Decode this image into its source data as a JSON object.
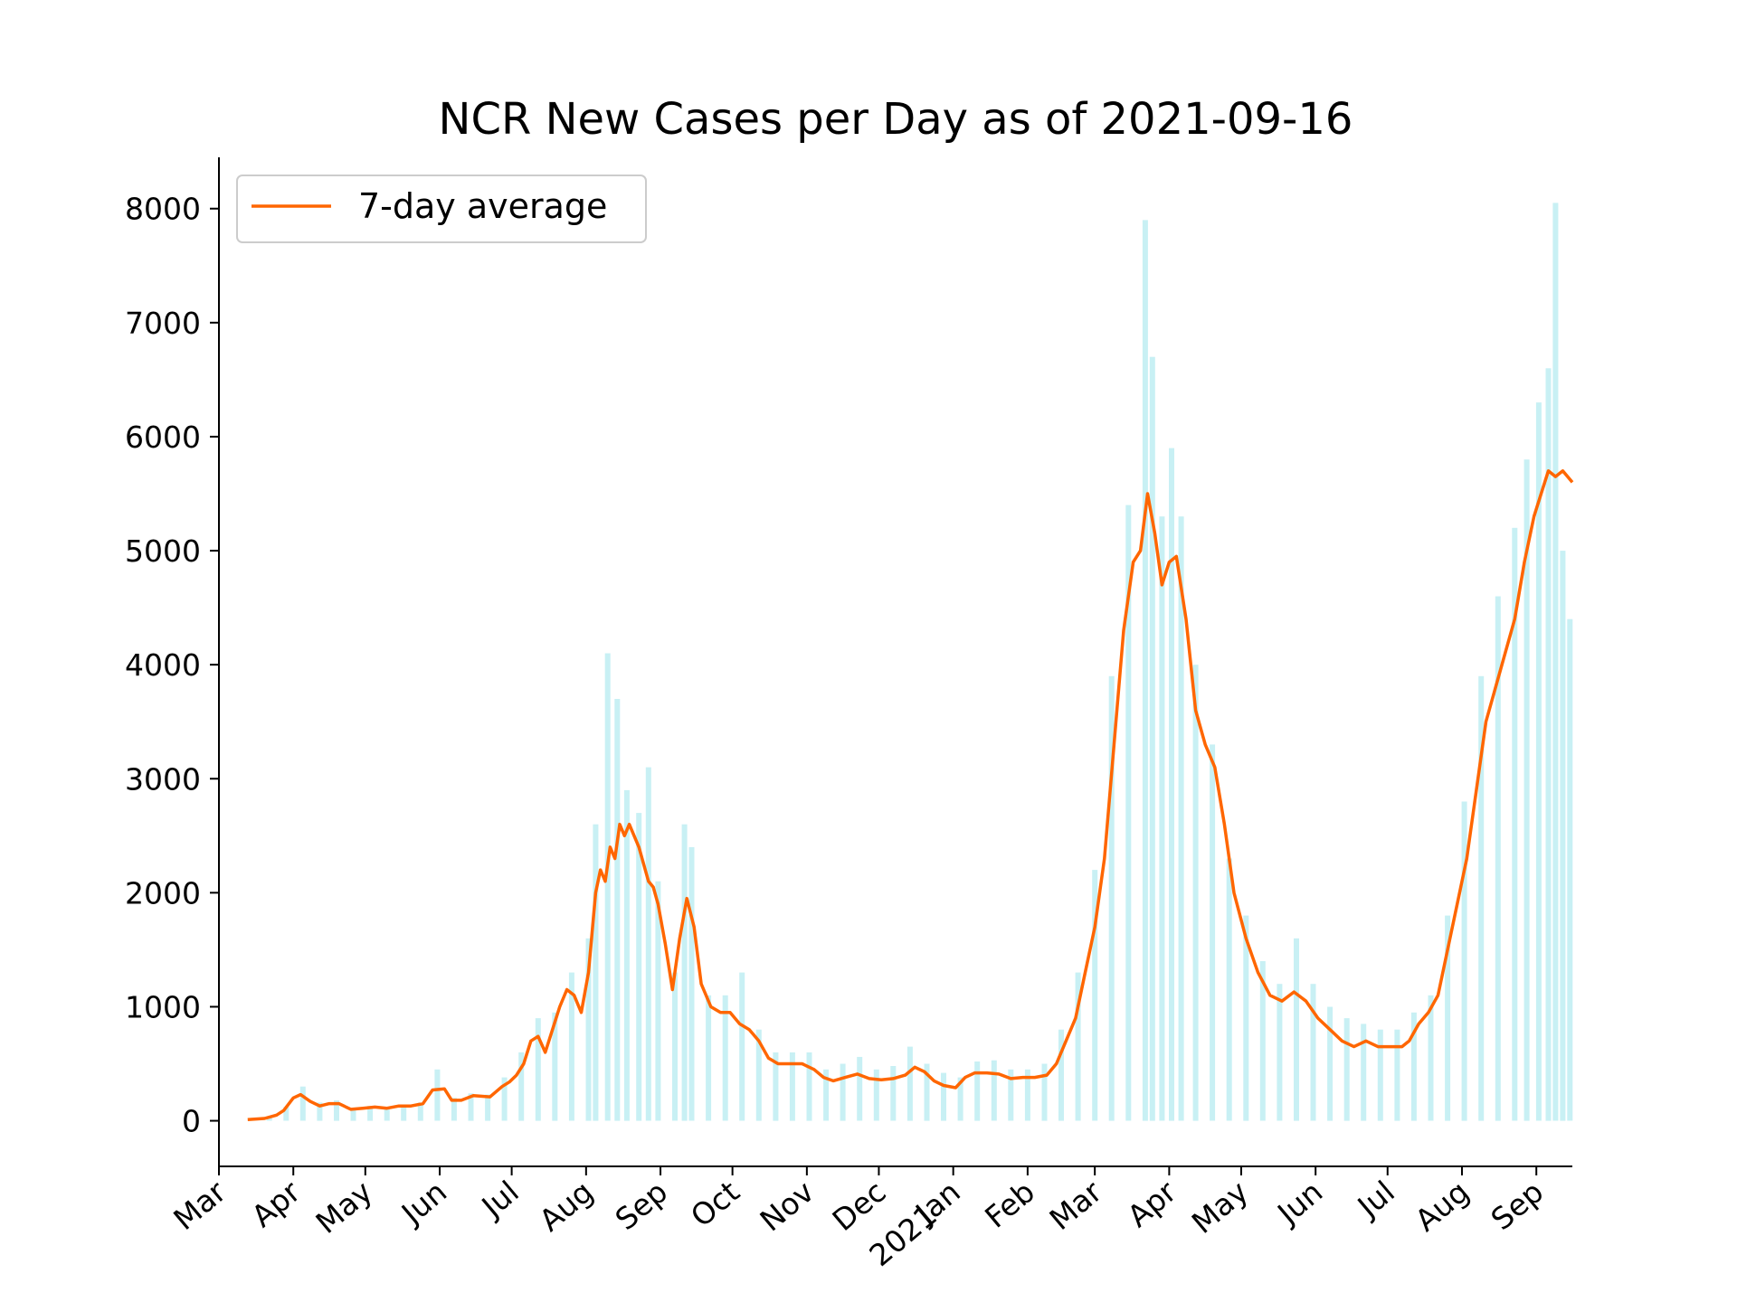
{
  "chart_data": {
    "type": "line",
    "title": "NCR New Cases per Day as of 2021-09-16",
    "xlabel": "",
    "ylabel": "",
    "xlim": [
      "2020-03-01",
      "2021-09-16"
    ],
    "ylim": [
      -400,
      8450
    ],
    "y_ticks": [
      0,
      1000,
      2000,
      3000,
      4000,
      5000,
      6000,
      7000,
      8000
    ],
    "x_ticks": [
      {
        "date": "2020-03-01",
        "label": "Mar"
      },
      {
        "date": "2020-04-01",
        "label": "Apr"
      },
      {
        "date": "2020-05-01",
        "label": "May"
      },
      {
        "date": "2020-06-01",
        "label": "Jun"
      },
      {
        "date": "2020-07-01",
        "label": "Jul"
      },
      {
        "date": "2020-08-01",
        "label": "Aug"
      },
      {
        "date": "2020-09-01",
        "label": "Sep"
      },
      {
        "date": "2020-10-01",
        "label": "Oct"
      },
      {
        "date": "2020-11-01",
        "label": "Nov"
      },
      {
        "date": "2020-12-01",
        "label": "Dec"
      },
      {
        "date": "2021-01-01",
        "label": "Jan\n2021"
      },
      {
        "date": "2021-02-01",
        "label": "Feb"
      },
      {
        "date": "2021-03-01",
        "label": "Mar"
      },
      {
        "date": "2021-04-01",
        "label": "Apr"
      },
      {
        "date": "2021-05-01",
        "label": "May"
      },
      {
        "date": "2021-06-01",
        "label": "Jun"
      },
      {
        "date": "2021-07-01",
        "label": "Jul"
      },
      {
        "date": "2021-08-01",
        "label": "Aug"
      },
      {
        "date": "2021-09-01",
        "label": "Sep"
      }
    ],
    "legend": {
      "placement": "upper-left",
      "entries": [
        "7-day average"
      ]
    },
    "grid": false,
    "series": [
      {
        "name": "7-day average",
        "color": "#ff6600",
        "points": [
          [
            "2020-03-13",
            10
          ],
          [
            "2020-03-20",
            20
          ],
          [
            "2020-03-25",
            50
          ],
          [
            "2020-03-28",
            90
          ],
          [
            "2020-04-01",
            200
          ],
          [
            "2020-04-04",
            230
          ],
          [
            "2020-04-08",
            170
          ],
          [
            "2020-04-12",
            130
          ],
          [
            "2020-04-16",
            150
          ],
          [
            "2020-04-20",
            150
          ],
          [
            "2020-04-25",
            100
          ],
          [
            "2020-04-30",
            110
          ],
          [
            "2020-05-05",
            120
          ],
          [
            "2020-05-10",
            110
          ],
          [
            "2020-05-15",
            130
          ],
          [
            "2020-05-20",
            130
          ],
          [
            "2020-05-25",
            150
          ],
          [
            "2020-05-29",
            270
          ],
          [
            "2020-06-03",
            280
          ],
          [
            "2020-06-06",
            180
          ],
          [
            "2020-06-10",
            180
          ],
          [
            "2020-06-15",
            220
          ],
          [
            "2020-06-22",
            210
          ],
          [
            "2020-06-27",
            300
          ],
          [
            "2020-06-30",
            340
          ],
          [
            "2020-07-03",
            400
          ],
          [
            "2020-07-06",
            500
          ],
          [
            "2020-07-09",
            700
          ],
          [
            "2020-07-12",
            740
          ],
          [
            "2020-07-15",
            600
          ],
          [
            "2020-07-18",
            800
          ],
          [
            "2020-07-21",
            1000
          ],
          [
            "2020-07-24",
            1150
          ],
          [
            "2020-07-27",
            1100
          ],
          [
            "2020-07-30",
            950
          ],
          [
            "2020-08-02",
            1300
          ],
          [
            "2020-08-05",
            2000
          ],
          [
            "2020-08-07",
            2200
          ],
          [
            "2020-08-09",
            2100
          ],
          [
            "2020-08-11",
            2400
          ],
          [
            "2020-08-13",
            2300
          ],
          [
            "2020-08-15",
            2600
          ],
          [
            "2020-08-17",
            2500
          ],
          [
            "2020-08-19",
            2600
          ],
          [
            "2020-08-21",
            2500
          ],
          [
            "2020-08-23",
            2400
          ],
          [
            "2020-08-25",
            2250
          ],
          [
            "2020-08-27",
            2100
          ],
          [
            "2020-08-29",
            2050
          ],
          [
            "2020-08-31",
            1900
          ],
          [
            "2020-09-03",
            1550
          ],
          [
            "2020-09-06",
            1150
          ],
          [
            "2020-09-09",
            1600
          ],
          [
            "2020-09-12",
            1950
          ],
          [
            "2020-09-15",
            1700
          ],
          [
            "2020-09-18",
            1200
          ],
          [
            "2020-09-22",
            1000
          ],
          [
            "2020-09-26",
            950
          ],
          [
            "2020-09-30",
            950
          ],
          [
            "2020-10-04",
            850
          ],
          [
            "2020-10-08",
            800
          ],
          [
            "2020-10-12",
            700
          ],
          [
            "2020-10-16",
            550
          ],
          [
            "2020-10-20",
            500
          ],
          [
            "2020-10-25",
            500
          ],
          [
            "2020-10-30",
            500
          ],
          [
            "2020-11-04",
            450
          ],
          [
            "2020-11-08",
            380
          ],
          [
            "2020-11-12",
            350
          ],
          [
            "2020-11-17",
            380
          ],
          [
            "2020-11-22",
            410
          ],
          [
            "2020-11-27",
            370
          ],
          [
            "2020-12-02",
            360
          ],
          [
            "2020-12-07",
            370
          ],
          [
            "2020-12-12",
            400
          ],
          [
            "2020-12-16",
            470
          ],
          [
            "2020-12-20",
            430
          ],
          [
            "2020-12-24",
            350
          ],
          [
            "2020-12-28",
            310
          ],
          [
            "2021-01-02",
            290
          ],
          [
            "2021-01-06",
            380
          ],
          [
            "2021-01-10",
            420
          ],
          [
            "2021-01-15",
            420
          ],
          [
            "2021-01-20",
            410
          ],
          [
            "2021-01-25",
            370
          ],
          [
            "2021-01-30",
            380
          ],
          [
            "2021-02-04",
            380
          ],
          [
            "2021-02-09",
            400
          ],
          [
            "2021-02-13",
            500
          ],
          [
            "2021-02-17",
            700
          ],
          [
            "2021-02-21",
            900
          ],
          [
            "2021-02-25",
            1300
          ],
          [
            "2021-03-01",
            1700
          ],
          [
            "2021-03-05",
            2300
          ],
          [
            "2021-03-09",
            3300
          ],
          [
            "2021-03-13",
            4300
          ],
          [
            "2021-03-17",
            4900
          ],
          [
            "2021-03-20",
            5000
          ],
          [
            "2021-03-23",
            5500
          ],
          [
            "2021-03-26",
            5150
          ],
          [
            "2021-03-29",
            4700
          ],
          [
            "2021-04-01",
            4900
          ],
          [
            "2021-04-04",
            4950
          ],
          [
            "2021-04-08",
            4400
          ],
          [
            "2021-04-12",
            3600
          ],
          [
            "2021-04-16",
            3300
          ],
          [
            "2021-04-20",
            3100
          ],
          [
            "2021-04-24",
            2600
          ],
          [
            "2021-04-28",
            2000
          ],
          [
            "2021-05-03",
            1600
          ],
          [
            "2021-05-08",
            1300
          ],
          [
            "2021-05-13",
            1100
          ],
          [
            "2021-05-18",
            1050
          ],
          [
            "2021-05-23",
            1130
          ],
          [
            "2021-05-28",
            1050
          ],
          [
            "2021-06-02",
            900
          ],
          [
            "2021-06-07",
            800
          ],
          [
            "2021-06-12",
            700
          ],
          [
            "2021-06-17",
            650
          ],
          [
            "2021-06-22",
            700
          ],
          [
            "2021-06-27",
            650
          ],
          [
            "2021-07-02",
            650
          ],
          [
            "2021-07-07",
            650
          ],
          [
            "2021-07-10",
            700
          ],
          [
            "2021-07-14",
            850
          ],
          [
            "2021-07-18",
            950
          ],
          [
            "2021-07-22",
            1100
          ],
          [
            "2021-07-26",
            1500
          ],
          [
            "2021-07-30",
            1900
          ],
          [
            "2021-08-03",
            2300
          ],
          [
            "2021-08-07",
            2900
          ],
          [
            "2021-08-11",
            3500
          ],
          [
            "2021-08-15",
            3800
          ],
          [
            "2021-08-19",
            4100
          ],
          [
            "2021-08-23",
            4400
          ],
          [
            "2021-08-27",
            4900
          ],
          [
            "2021-08-31",
            5300
          ],
          [
            "2021-09-03",
            5500
          ],
          [
            "2021-09-06",
            5700
          ],
          [
            "2021-09-09",
            5650
          ],
          [
            "2021-09-12",
            5700
          ],
          [
            "2021-09-16",
            5600
          ]
        ]
      },
      {
        "name": "",
        "type": "bar",
        "color": "#c8f0f4",
        "points": [
          [
            "2020-03-15",
            20
          ],
          [
            "2020-03-22",
            40
          ],
          [
            "2020-03-29",
            120
          ],
          [
            "2020-04-05",
            300
          ],
          [
            "2020-04-12",
            160
          ],
          [
            "2020-04-19",
            180
          ],
          [
            "2020-04-26",
            110
          ],
          [
            "2020-05-03",
            130
          ],
          [
            "2020-05-10",
            120
          ],
          [
            "2020-05-17",
            140
          ],
          [
            "2020-05-24",
            160
          ],
          [
            "2020-05-31",
            450
          ],
          [
            "2020-06-07",
            200
          ],
          [
            "2020-06-14",
            240
          ],
          [
            "2020-06-21",
            230
          ],
          [
            "2020-06-28",
            380
          ],
          [
            "2020-07-05",
            600
          ],
          [
            "2020-07-12",
            900
          ],
          [
            "2020-07-19",
            950
          ],
          [
            "2020-07-26",
            1300
          ],
          [
            "2020-08-02",
            1600
          ],
          [
            "2020-08-05",
            2600
          ],
          [
            "2020-08-10",
            4100
          ],
          [
            "2020-08-14",
            3700
          ],
          [
            "2020-08-18",
            2900
          ],
          [
            "2020-08-23",
            2700
          ],
          [
            "2020-08-27",
            3100
          ],
          [
            "2020-08-31",
            2100
          ],
          [
            "2020-09-07",
            1300
          ],
          [
            "2020-09-11",
            2600
          ],
          [
            "2020-09-14",
            2400
          ],
          [
            "2020-09-21",
            1100
          ],
          [
            "2020-09-28",
            1100
          ],
          [
            "2020-10-05",
            1300
          ],
          [
            "2020-10-12",
            800
          ],
          [
            "2020-10-19",
            600
          ],
          [
            "2020-10-26",
            600
          ],
          [
            "2020-11-02",
            600
          ],
          [
            "2020-11-09",
            450
          ],
          [
            "2020-11-16",
            500
          ],
          [
            "2020-11-23",
            560
          ],
          [
            "2020-11-30",
            450
          ],
          [
            "2020-12-07",
            480
          ],
          [
            "2020-12-14",
            650
          ],
          [
            "2020-12-21",
            500
          ],
          [
            "2020-12-28",
            420
          ],
          [
            "2021-01-04",
            380
          ],
          [
            "2021-01-11",
            520
          ],
          [
            "2021-01-18",
            530
          ],
          [
            "2021-01-25",
            450
          ],
          [
            "2021-02-01",
            450
          ],
          [
            "2021-02-08",
            500
          ],
          [
            "2021-02-15",
            800
          ],
          [
            "2021-02-22",
            1300
          ],
          [
            "2021-03-01",
            2200
          ],
          [
            "2021-03-08",
            3900
          ],
          [
            "2021-03-15",
            5400
          ],
          [
            "2021-03-22",
            7900
          ],
          [
            "2021-03-25",
            6700
          ],
          [
            "2021-03-29",
            5300
          ],
          [
            "2021-04-02",
            5900
          ],
          [
            "2021-04-06",
            5300
          ],
          [
            "2021-04-12",
            4000
          ],
          [
            "2021-04-19",
            3300
          ],
          [
            "2021-04-26",
            2300
          ],
          [
            "2021-05-03",
            1800
          ],
          [
            "2021-05-10",
            1400
          ],
          [
            "2021-05-17",
            1200
          ],
          [
            "2021-05-24",
            1600
          ],
          [
            "2021-05-31",
            1200
          ],
          [
            "2021-06-07",
            1000
          ],
          [
            "2021-06-14",
            900
          ],
          [
            "2021-06-21",
            850
          ],
          [
            "2021-06-28",
            800
          ],
          [
            "2021-07-05",
            800
          ],
          [
            "2021-07-12",
            950
          ],
          [
            "2021-07-19",
            1100
          ],
          [
            "2021-07-26",
            1800
          ],
          [
            "2021-08-02",
            2800
          ],
          [
            "2021-08-09",
            3900
          ],
          [
            "2021-08-16",
            4600
          ],
          [
            "2021-08-23",
            5200
          ],
          [
            "2021-08-28",
            5800
          ],
          [
            "2021-09-02",
            6300
          ],
          [
            "2021-09-06",
            6600
          ],
          [
            "2021-09-09",
            8050
          ],
          [
            "2021-09-12",
            5000
          ],
          [
            "2021-09-15",
            4400
          ]
        ]
      }
    ]
  }
}
